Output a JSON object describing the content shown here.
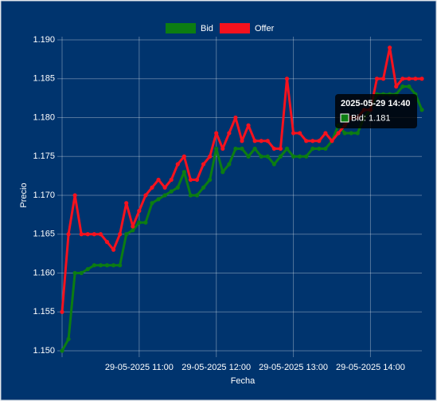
{
  "chart_data": {
    "type": "line",
    "x_label": "Fecha",
    "y_label": "Precio",
    "x": [
      "29-05-2025 10:00",
      "29-05-2025 10:05",
      "29-05-2025 10:10",
      "29-05-2025 10:15",
      "29-05-2025 10:20",
      "29-05-2025 10:25",
      "29-05-2025 10:30",
      "29-05-2025 10:35",
      "29-05-2025 10:40",
      "29-05-2025 10:45",
      "29-05-2025 10:50",
      "29-05-2025 10:55",
      "29-05-2025 11:00",
      "29-05-2025 11:05",
      "29-05-2025 11:10",
      "29-05-2025 11:15",
      "29-05-2025 11:20",
      "29-05-2025 11:25",
      "29-05-2025 11:30",
      "29-05-2025 11:35",
      "29-05-2025 11:40",
      "29-05-2025 11:45",
      "29-05-2025 11:50",
      "29-05-2025 11:55",
      "29-05-2025 12:00",
      "29-05-2025 12:05",
      "29-05-2025 12:10",
      "29-05-2025 12:15",
      "29-05-2025 12:20",
      "29-05-2025 12:25",
      "29-05-2025 12:30",
      "29-05-2025 12:35",
      "29-05-2025 12:40",
      "29-05-2025 12:45",
      "29-05-2025 12:50",
      "29-05-2025 12:55",
      "29-05-2025 13:00",
      "29-05-2025 13:05",
      "29-05-2025 13:10",
      "29-05-2025 13:15",
      "29-05-2025 13:20",
      "29-05-2025 13:25",
      "29-05-2025 13:30",
      "29-05-2025 13:35",
      "29-05-2025 13:40",
      "29-05-2025 13:45",
      "29-05-2025 13:50",
      "29-05-2025 13:55",
      "29-05-2025 14:00",
      "29-05-2025 14:05",
      "29-05-2025 14:10",
      "29-05-2025 14:15",
      "29-05-2025 14:20",
      "29-05-2025 14:25",
      "29-05-2025 14:30",
      "29-05-2025 14:35",
      "29-05-2025 14:40"
    ],
    "series": [
      {
        "name": "Bid",
        "color": "#0c7d12",
        "values": [
          1.15,
          1.1515,
          1.16,
          1.16,
          1.1605,
          1.161,
          1.161,
          1.161,
          1.161,
          1.161,
          1.165,
          1.1655,
          1.1665,
          1.1665,
          1.169,
          1.1695,
          1.17,
          1.1705,
          1.171,
          1.173,
          1.17,
          1.17,
          1.171,
          1.172,
          1.176,
          1.173,
          1.174,
          1.176,
          1.176,
          1.175,
          1.176,
          1.175,
          1.175,
          1.174,
          1.175,
          1.176,
          1.175,
          1.175,
          1.175,
          1.176,
          1.176,
          1.176,
          1.177,
          1.179,
          1.178,
          1.178,
          1.178,
          1.18,
          1.181,
          1.183,
          1.183,
          1.183,
          1.183,
          1.184,
          1.184,
          1.183,
          1.181
        ]
      },
      {
        "name": "Offer",
        "color": "#f5121e",
        "values": [
          1.155,
          1.165,
          1.17,
          1.165,
          1.165,
          1.165,
          1.165,
          1.164,
          1.163,
          1.165,
          1.169,
          1.166,
          1.168,
          1.17,
          1.171,
          1.172,
          1.171,
          1.172,
          1.174,
          1.175,
          1.172,
          1.172,
          1.174,
          1.175,
          1.178,
          1.176,
          1.178,
          1.18,
          1.177,
          1.179,
          1.177,
          1.177,
          1.177,
          1.176,
          1.176,
          1.185,
          1.178,
          1.178,
          1.177,
          1.177,
          1.177,
          1.178,
          1.177,
          1.178,
          1.179,
          1.18,
          1.18,
          1.181,
          1.181,
          1.185,
          1.185,
          1.189,
          1.184,
          1.185,
          1.185,
          1.185,
          1.185
        ]
      }
    ],
    "xlim": [
      "29-05-2025 10:00",
      "29-05-2025 14:40"
    ],
    "xticks": [
      "29-05-2025 11:00",
      "29-05-2025 12:00",
      "29-05-2025 13:00",
      "29-05-2025 14:00"
    ],
    "ylim": [
      1.15,
      1.19
    ],
    "yticks": [
      {
        "value": 1.15,
        "label": "1.150"
      },
      1.155,
      {
        "value": 1.16,
        "label": "1.160"
      },
      1.165,
      {
        "value": 1.17,
        "label": "1.170"
      },
      1.175,
      {
        "value": 1.18,
        "label": "1.180"
      },
      1.185,
      {
        "value": 1.19,
        "label": "1.190"
      }
    ],
    "grid": true,
    "legend": "top",
    "tooltip": {
      "title": "2025-05-29 14:40",
      "label": "Bid: 1.181"
    }
  }
}
